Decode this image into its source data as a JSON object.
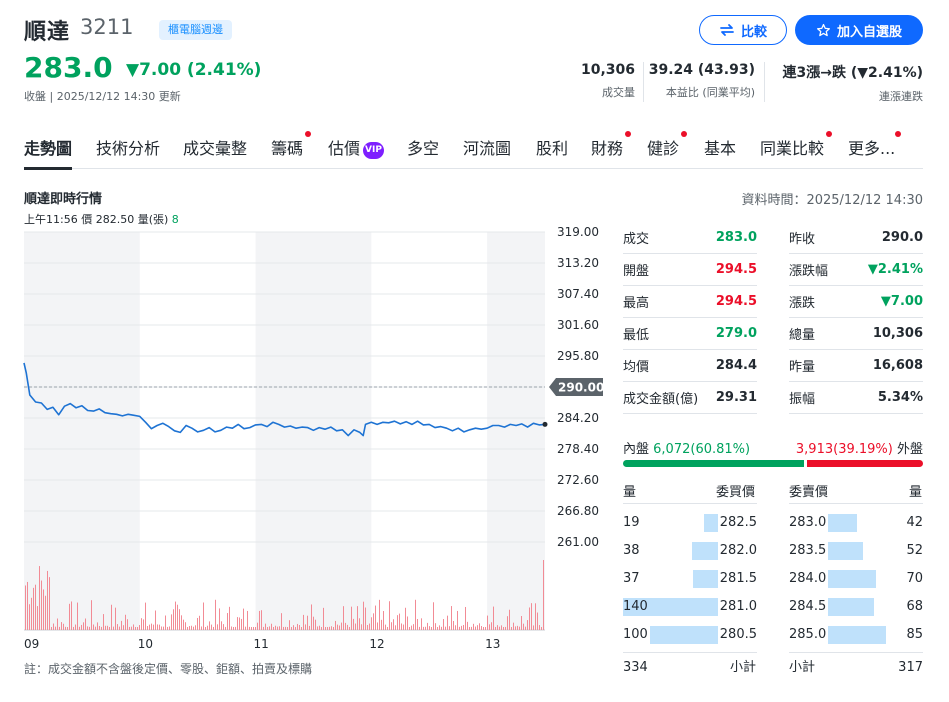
{
  "header": {
    "name": "順達",
    "code": "3211",
    "badge": "櫃電腦週邊",
    "price": "283.0",
    "change": "▼7.00 (2.41%)",
    "status": "收盤 | 2025/12/12 14:30 更新",
    "compare_label": "比較",
    "watchlist_label": "加入自選股"
  },
  "metrics": [
    {
      "value": "10,306",
      "label": "成交量"
    },
    {
      "value": "39.24 (43.93)",
      "label": "本益比 (同業平均)"
    },
    {
      "value": "連3漲→跌 (▼2.41%)",
      "label": "連漲連跌"
    }
  ],
  "tabs": [
    {
      "label": "走勢圖",
      "active": true,
      "dot": false
    },
    {
      "label": "技術分析",
      "dot": false
    },
    {
      "label": "成交彙整",
      "dot": false
    },
    {
      "label": "籌碼",
      "dot": true
    },
    {
      "label": "估價",
      "dot": false,
      "vip": "VIP"
    },
    {
      "label": "多空",
      "dot": false
    },
    {
      "label": "河流圖",
      "dot": false
    },
    {
      "label": "股利",
      "dot": false
    },
    {
      "label": "財務",
      "dot": true
    },
    {
      "label": "健診",
      "dot": true
    },
    {
      "label": "基本",
      "dot": false
    },
    {
      "label": "同業比較",
      "dot": true
    },
    {
      "label": "更多...",
      "dot": true
    }
  ],
  "chart_section": {
    "title": "順達即時行情",
    "data_time": "資料時間：2025/12/12 14:30",
    "hover": {
      "time": "上午11:56",
      "price_label": "價",
      "price": "282.50",
      "vol_label": "量(張)",
      "vol": "8"
    },
    "note": "註：成交金額不含盤後定價、零股、鉅額、拍賣及標購"
  },
  "chart_data": {
    "type": "line",
    "y_ticks": [
      "319.00",
      "313.20",
      "307.40",
      "301.60",
      "295.80",
      "290.00",
      "284.20",
      "278.40",
      "272.60",
      "266.80",
      "261.00"
    ],
    "x_ticks": [
      "09",
      "10",
      "11",
      "12",
      "13"
    ],
    "ylim": [
      261,
      319
    ],
    "reference_price": "290.00",
    "open": 294.5,
    "high": 294.5,
    "low": 279.0,
    "close": 283.0,
    "x_hours": [
      9.0,
      9.02,
      9.05,
      9.1,
      9.15,
      9.2,
      9.25,
      9.3,
      9.35,
      9.4,
      9.45,
      9.5,
      9.55,
      9.6,
      9.65,
      9.7,
      9.75,
      9.8,
      9.85,
      9.9,
      9.95,
      10.0,
      10.05,
      10.1,
      10.15,
      10.2,
      10.25,
      10.3,
      10.35,
      10.4,
      10.45,
      10.5,
      10.55,
      10.6,
      10.65,
      10.7,
      10.75,
      10.8,
      10.85,
      10.9,
      10.95,
      11.0,
      11.05,
      11.1,
      11.15,
      11.2,
      11.25,
      11.3,
      11.35,
      11.4,
      11.45,
      11.5,
      11.55,
      11.6,
      11.65,
      11.7,
      11.75,
      11.8,
      11.85,
      11.9,
      11.93,
      11.95,
      12.0,
      12.05,
      12.1,
      12.15,
      12.2,
      12.25,
      12.3,
      12.35,
      12.4,
      12.45,
      12.5,
      12.55,
      12.6,
      12.65,
      12.7,
      12.75,
      12.8,
      12.85,
      12.9,
      12.95,
      13.0,
      13.05,
      13.1,
      13.15,
      13.2,
      13.25,
      13.3,
      13.35,
      13.4,
      13.45,
      13.5
    ],
    "price": [
      294.5,
      292.6,
      288.5,
      287.2,
      287.0,
      285.8,
      286.2,
      284.8,
      286.4,
      286.9,
      286.1,
      286.5,
      285.6,
      285.5,
      285.9,
      285.2,
      285.0,
      284.9,
      284.6,
      284.9,
      284.7,
      284.5,
      283.4,
      282.2,
      282.8,
      283.2,
      282.6,
      281.8,
      281.5,
      282.8,
      282.3,
      281.6,
      281.9,
      282.4,
      281.6,
      281.9,
      282.5,
      282.3,
      283.0,
      282.2,
      282.4,
      282.9,
      283.0,
      282.6,
      283.4,
      283.0,
      282.5,
      282.7,
      282.3,
      282.5,
      282.4,
      281.9,
      282.4,
      282.1,
      282.5,
      281.8,
      282.0,
      280.9,
      282.0,
      281.5,
      280.9,
      283.0,
      283.4,
      283.0,
      283.4,
      283.3,
      283.6,
      283.1,
      283.5,
      283.0,
      283.6,
      282.9,
      283.0,
      282.4,
      282.6,
      282.3,
      281.8,
      282.3,
      281.6,
      282.0,
      282.3,
      282.1,
      282.3,
      282.8,
      282.8,
      282.5,
      283.0,
      282.8,
      283.1,
      282.5,
      283.2,
      282.9,
      283.0
    ],
    "volume_note": "每分鐘成交量柱狀圖"
  },
  "stats": {
    "left": [
      {
        "label": "成交",
        "value": "283.0",
        "color": "green"
      },
      {
        "label": "開盤",
        "value": "294.5",
        "color": "red"
      },
      {
        "label": "最高",
        "value": "294.5",
        "color": "red"
      },
      {
        "label": "最低",
        "value": "279.0",
        "color": "green"
      },
      {
        "label": "均價",
        "value": "284.4",
        "color": "plain"
      },
      {
        "label": "成交金額(億)",
        "value": "29.31",
        "color": "plain"
      }
    ],
    "right": [
      {
        "label": "昨收",
        "value": "290.0",
        "color": "plain"
      },
      {
        "label": "漲跌幅",
        "value": "▼2.41%",
        "color": "green"
      },
      {
        "label": "漲跌",
        "value": "▼7.00",
        "color": "green"
      },
      {
        "label": "總量",
        "value": "10,306",
        "color": "plain"
      },
      {
        "label": "昨量",
        "value": "16,608",
        "color": "plain"
      },
      {
        "label": "振幅",
        "value": "5.34%",
        "color": "plain"
      }
    ]
  },
  "inner_outer": {
    "inner_label": "內盤",
    "inner_value": "6,072(60.81%)",
    "outer_value": "3,913(39.19%)",
    "outer_label": "外盤",
    "inner_fraction": 0.6081
  },
  "order_book": {
    "headers": {
      "qty": "量",
      "bid": "委買價",
      "ask": "委賣價",
      "qty2": "量"
    },
    "bids": [
      {
        "qty": "19",
        "price": "282.5",
        "q": 19
      },
      {
        "qty": "38",
        "price": "282.0",
        "q": 38
      },
      {
        "qty": "37",
        "price": "281.5",
        "q": 37
      },
      {
        "qty": "140",
        "price": "281.0",
        "q": 140
      },
      {
        "qty": "100",
        "price": "280.5",
        "q": 100
      }
    ],
    "asks": [
      {
        "price": "283.0",
        "qty": "42",
        "q": 42
      },
      {
        "price": "283.5",
        "qty": "52",
        "q": 52
      },
      {
        "price": "284.0",
        "qty": "70",
        "q": 70
      },
      {
        "price": "284.5",
        "qty": "68",
        "q": 68
      },
      {
        "price": "285.0",
        "qty": "85",
        "q": 85
      }
    ],
    "bid_total": "334",
    "subtotal_label": "小計",
    "ask_total": "317"
  }
}
